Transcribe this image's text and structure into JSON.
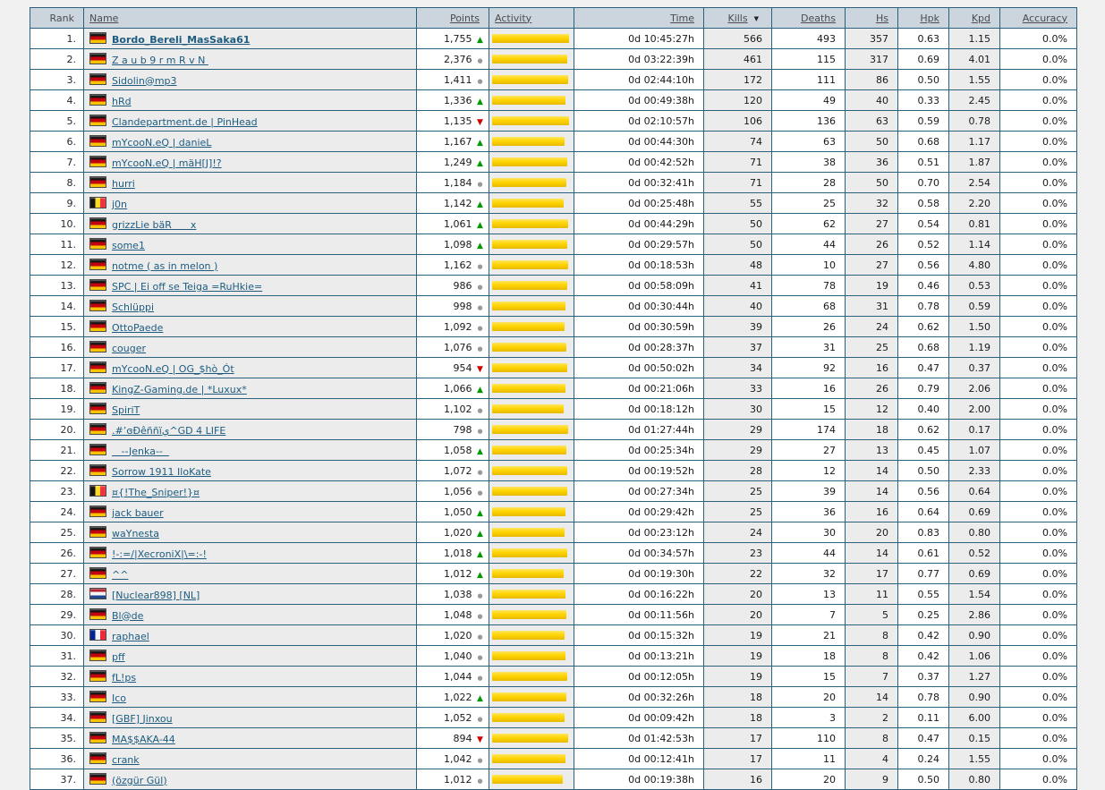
{
  "page": {
    "background": "#f0f0f0"
  },
  "table": {
    "sort": {
      "column": "Kills",
      "direction": "desc",
      "icon": "▼"
    },
    "columns": [
      {
        "key": "rank",
        "label": "Rank",
        "sortable": false
      },
      {
        "key": "name",
        "label": "Name",
        "sortable": true
      },
      {
        "key": "points",
        "label": "Points",
        "sortable": true
      },
      {
        "key": "activity",
        "label": "Activity",
        "sortable": true
      },
      {
        "key": "time",
        "label": "Time",
        "sortable": true
      },
      {
        "key": "kills",
        "label": "Kills",
        "sortable": true
      },
      {
        "key": "deaths",
        "label": "Deaths",
        "sortable": true
      },
      {
        "key": "hs",
        "label": "Hs",
        "sortable": true
      },
      {
        "key": "hpk",
        "label": "Hpk",
        "sortable": true
      },
      {
        "key": "kpd",
        "label": "Kpd",
        "sortable": true
      },
      {
        "key": "accuracy",
        "label": "Accuracy",
        "sortable": true
      }
    ],
    "colors": {
      "border": "#2a617f",
      "header_bg": "#ccd5dd",
      "shaded_column_bg": "#ececec",
      "activity_bar": "#ffd500",
      "trend_up": "#009900",
      "trend_down": "#cc0000",
      "trend_steady": "#999999",
      "player_link": "#1d5c80"
    },
    "trend_icons": {
      "up": "▲",
      "down": "▼",
      "steady": "●"
    },
    "rows": [
      {
        "rank": "1.",
        "flag": "de",
        "name": "Bordo_Bereli_MasSaka61",
        "bold": true,
        "points": "1,755",
        "trend": "up",
        "activity": 98,
        "time": "0d 10:45:27h",
        "kills": "566",
        "deaths": "493",
        "hs": "357",
        "hpk": "0.63",
        "kpd": "1.15",
        "accuracy": "0.0%"
      },
      {
        "rank": "2.",
        "flag": "de",
        "name": "Z a u b 9 r m R v N ",
        "bold": false,
        "points": "2,376",
        "trend": "steady",
        "activity": 95,
        "time": "0d 03:22:39h",
        "kills": "461",
        "deaths": "115",
        "hs": "317",
        "hpk": "0.69",
        "kpd": "4.01",
        "accuracy": "0.0%"
      },
      {
        "rank": "3.",
        "flag": "de",
        "name": "Sidolin@mp3",
        "bold": false,
        "points": "1,411",
        "trend": "steady",
        "activity": 97,
        "time": "0d 02:44:10h",
        "kills": "172",
        "deaths": "111",
        "hs": "86",
        "hpk": "0.50",
        "kpd": "1.55",
        "accuracy": "0.0%"
      },
      {
        "rank": "4.",
        "flag": "de",
        "name": "hRd",
        "bold": false,
        "points": "1,336",
        "trend": "up",
        "activity": 93,
        "time": "0d 00:49:38h",
        "kills": "120",
        "deaths": "49",
        "hs": "40",
        "hpk": "0.33",
        "kpd": "2.45",
        "accuracy": "0.0%"
      },
      {
        "rank": "5.",
        "flag": "de",
        "name": "Clandepartment.de | PinHead",
        "bold": false,
        "points": "1,135",
        "trend": "down",
        "activity": 98,
        "time": "0d 02:10:57h",
        "kills": "106",
        "deaths": "136",
        "hs": "63",
        "hpk": "0.59",
        "kpd": "0.78",
        "accuracy": "0.0%"
      },
      {
        "rank": "6.",
        "flag": "de",
        "name": "mYcooN.eQ | danieL",
        "bold": false,
        "points": "1,167",
        "trend": "up",
        "activity": 92,
        "time": "0d 00:44:30h",
        "kills": "74",
        "deaths": "63",
        "hs": "50",
        "hpk": "0.68",
        "kpd": "1.17",
        "accuracy": "0.0%"
      },
      {
        "rank": "7.",
        "flag": "de",
        "name": "mYcooN.eQ | mäH[J]!?",
        "bold": false,
        "points": "1,249",
        "trend": "up",
        "activity": 95,
        "time": "0d 00:42:52h",
        "kills": "71",
        "deaths": "38",
        "hs": "36",
        "hpk": "0.51",
        "kpd": "1.87",
        "accuracy": "0.0%"
      },
      {
        "rank": "8.",
        "flag": "de",
        "name": "hurri",
        "bold": false,
        "points": "1,184",
        "trend": "steady",
        "activity": 94,
        "time": "0d 00:32:41h",
        "kills": "71",
        "deaths": "28",
        "hs": "50",
        "hpk": "0.70",
        "kpd": "2.54",
        "accuracy": "0.0%"
      },
      {
        "rank": "9.",
        "flag": "be",
        "name": "j0n",
        "bold": false,
        "points": "1,142",
        "trend": "up",
        "activity": 91,
        "time": "0d 00:25:48h",
        "kills": "55",
        "deaths": "25",
        "hs": "32",
        "hpk": "0.58",
        "kpd": "2.20",
        "accuracy": "0.0%"
      },
      {
        "rank": "10.",
        "flag": "de",
        "name": "grizzLie bäR      x",
        "bold": false,
        "points": "1,061",
        "trend": "up",
        "activity": 97,
        "time": "0d 00:44:29h",
        "kills": "50",
        "deaths": "62",
        "hs": "27",
        "hpk": "0.54",
        "kpd": "0.81",
        "accuracy": "0.0%"
      },
      {
        "rank": "11.",
        "flag": "de",
        "name": "some1",
        "bold": false,
        "points": "1,098",
        "trend": "up",
        "activity": 95,
        "time": "0d 00:29:57h",
        "kills": "50",
        "deaths": "44",
        "hs": "26",
        "hpk": "0.52",
        "kpd": "1.14",
        "accuracy": "0.0%"
      },
      {
        "rank": "12.",
        "flag": "de",
        "name": "notme ( as in melon )",
        "bold": false,
        "points": "1,162",
        "trend": "steady",
        "activity": 97,
        "time": "0d 00:18:53h",
        "kills": "48",
        "deaths": "10",
        "hs": "27",
        "hpk": "0.56",
        "kpd": "4.80",
        "accuracy": "0.0%"
      },
      {
        "rank": "13.",
        "flag": "de",
        "name": "SPC | Ei off se Teiga =RuHkie=",
        "bold": false,
        "points": "986",
        "trend": "steady",
        "activity": 95,
        "time": "0d 00:58:09h",
        "kills": "41",
        "deaths": "78",
        "hs": "19",
        "hpk": "0.46",
        "kpd": "0.53",
        "accuracy": "0.0%"
      },
      {
        "rank": "14.",
        "flag": "de",
        "name": "Schlüppi",
        "bold": false,
        "points": "998",
        "trend": "steady",
        "activity": 93,
        "time": "0d 00:30:44h",
        "kills": "40",
        "deaths": "68",
        "hs": "31",
        "hpk": "0.78",
        "kpd": "0.59",
        "accuracy": "0.0%"
      },
      {
        "rank": "15.",
        "flag": "de",
        "name": "OttoPaede",
        "bold": false,
        "points": "1,092",
        "trend": "steady",
        "activity": 92,
        "time": "0d 00:30:59h",
        "kills": "39",
        "deaths": "26",
        "hs": "24",
        "hpk": "0.62",
        "kpd": "1.50",
        "accuracy": "0.0%"
      },
      {
        "rank": "16.",
        "flag": "de",
        "name": "couger",
        "bold": false,
        "points": "1,076",
        "trend": "steady",
        "activity": 94,
        "time": "0d 00:28:37h",
        "kills": "37",
        "deaths": "31",
        "hs": "25",
        "hpk": "0.68",
        "kpd": "1.19",
        "accuracy": "0.0%"
      },
      {
        "rank": "17.",
        "flag": "de",
        "name": "mYcooN.eQ | OG_$hò_Ót",
        "bold": false,
        "points": "954",
        "trend": "down",
        "activity": 96,
        "time": "0d 00:50:02h",
        "kills": "34",
        "deaths": "92",
        "hs": "16",
        "hpk": "0.47",
        "kpd": "0.37",
        "accuracy": "0.0%"
      },
      {
        "rank": "18.",
        "flag": "de",
        "name": "KingZ-Gaming.de | *Luxux*",
        "bold": false,
        "points": "1,066",
        "trend": "up",
        "activity": 93,
        "time": "0d 00:21:06h",
        "kills": "33",
        "deaths": "16",
        "hs": "26",
        "hpk": "0.79",
        "kpd": "2.06",
        "accuracy": "0.0%"
      },
      {
        "rank": "19.",
        "flag": "de",
        "name": "SpiriT",
        "bold": false,
        "points": "1,102",
        "trend": "steady",
        "activity": 91,
        "time": "0d 00:18:12h",
        "kills": "30",
        "deaths": "15",
        "hs": "12",
        "hpk": "0.40",
        "kpd": "2.00",
        "accuracy": "0.0%"
      },
      {
        "rank": "20.",
        "flag": "de",
        "name": ".#ʼɞÐêññïي^GD 4 LIFE",
        "bold": false,
        "points": "798",
        "trend": "steady",
        "activity": 97,
        "time": "0d 01:27:44h",
        "kills": "29",
        "deaths": "174",
        "hs": "18",
        "hpk": "0.62",
        "kpd": "0.17",
        "accuracy": "0.0%"
      },
      {
        "rank": "21.",
        "flag": "de",
        "name": "   --Jenka--  ",
        "bold": false,
        "points": "1,058",
        "trend": "up",
        "activity": 94,
        "time": "0d 00:25:34h",
        "kills": "29",
        "deaths": "27",
        "hs": "13",
        "hpk": "0.45",
        "kpd": "1.07",
        "accuracy": "0.0%"
      },
      {
        "rank": "22.",
        "flag": "de",
        "name": "Sorrow 1911 IloKate",
        "bold": false,
        "points": "1,072",
        "trend": "steady",
        "activity": 95,
        "time": "0d 00:19:52h",
        "kills": "28",
        "deaths": "12",
        "hs": "14",
        "hpk": "0.50",
        "kpd": "2.33",
        "accuracy": "0.0%"
      },
      {
        "rank": "23.",
        "flag": "be",
        "name": "¤{!The_Sniper!}¤",
        "bold": false,
        "points": "1,056",
        "trend": "steady",
        "activity": 96,
        "time": "0d 00:27:34h",
        "kills": "25",
        "deaths": "39",
        "hs": "14",
        "hpk": "0.56",
        "kpd": "0.64",
        "accuracy": "0.0%"
      },
      {
        "rank": "24.",
        "flag": "de",
        "name": "jack bauer",
        "bold": false,
        "points": "1,050",
        "trend": "up",
        "activity": 93,
        "time": "0d 00:29:42h",
        "kills": "25",
        "deaths": "36",
        "hs": "16",
        "hpk": "0.64",
        "kpd": "0.69",
        "accuracy": "0.0%"
      },
      {
        "rank": "25.",
        "flag": "de",
        "name": "waYnesta",
        "bold": false,
        "points": "1,020",
        "trend": "up",
        "activity": 92,
        "time": "0d 00:23:12h",
        "kills": "24",
        "deaths": "30",
        "hs": "20",
        "hpk": "0.83",
        "kpd": "0.80",
        "accuracy": "0.0%"
      },
      {
        "rank": "26.",
        "flag": "de",
        "name": "!-:=/|XecroniX|\\=:-!",
        "bold": false,
        "points": "1,018",
        "trend": "up",
        "activity": 95,
        "time": "0d 00:34:57h",
        "kills": "23",
        "deaths": "44",
        "hs": "14",
        "hpk": "0.61",
        "kpd": "0.52",
        "accuracy": "0.0%"
      },
      {
        "rank": "27.",
        "flag": "de",
        "name": "^^",
        "bold": false,
        "points": "1,012",
        "trend": "up",
        "activity": 91,
        "time": "0d 00:19:30h",
        "kills": "22",
        "deaths": "32",
        "hs": "17",
        "hpk": "0.77",
        "kpd": "0.69",
        "accuracy": "0.0%"
      },
      {
        "rank": "28.",
        "flag": "nl",
        "name": "[Nuclear898] [NL]",
        "bold": false,
        "points": "1,038",
        "trend": "steady",
        "activity": 93,
        "time": "0d 00:16:22h",
        "kills": "20",
        "deaths": "13",
        "hs": "11",
        "hpk": "0.55",
        "kpd": "1.54",
        "accuracy": "0.0%"
      },
      {
        "rank": "29.",
        "flag": "de",
        "name": "Bl@de",
        "bold": false,
        "points": "1,048",
        "trend": "steady",
        "activity": 94,
        "time": "0d 00:11:56h",
        "kills": "20",
        "deaths": "7",
        "hs": "5",
        "hpk": "0.25",
        "kpd": "2.86",
        "accuracy": "0.0%"
      },
      {
        "rank": "30.",
        "flag": "fr",
        "name": "raphael",
        "bold": false,
        "points": "1,020",
        "trend": "steady",
        "activity": 92,
        "time": "0d 00:15:32h",
        "kills": "19",
        "deaths": "21",
        "hs": "8",
        "hpk": "0.42",
        "kpd": "0.90",
        "accuracy": "0.0%"
      },
      {
        "rank": "31.",
        "flag": "de",
        "name": "pff",
        "bold": false,
        "points": "1,040",
        "trend": "steady",
        "activity": 93,
        "time": "0d 00:13:21h",
        "kills": "19",
        "deaths": "18",
        "hs": "8",
        "hpk": "0.42",
        "kpd": "1.06",
        "accuracy": "0.0%"
      },
      {
        "rank": "32.",
        "flag": "de",
        "name": "fL!ps",
        "bold": false,
        "points": "1,044",
        "trend": "steady",
        "activity": 95,
        "time": "0d 00:12:05h",
        "kills": "19",
        "deaths": "15",
        "hs": "7",
        "hpk": "0.37",
        "kpd": "1.27",
        "accuracy": "0.0%"
      },
      {
        "rank": "33.",
        "flag": "de",
        "name": "Ico",
        "bold": false,
        "points": "1,022",
        "trend": "up",
        "activity": 94,
        "time": "0d 00:32:26h",
        "kills": "18",
        "deaths": "20",
        "hs": "14",
        "hpk": "0.78",
        "kpd": "0.90",
        "accuracy": "0.0%"
      },
      {
        "rank": "34.",
        "flag": "de",
        "name": "[GBF] Jinxou",
        "bold": false,
        "points": "1,052",
        "trend": "steady",
        "activity": 92,
        "time": "0d 00:09:42h",
        "kills": "18",
        "deaths": "3",
        "hs": "2",
        "hpk": "0.11",
        "kpd": "6.00",
        "accuracy": "0.0%"
      },
      {
        "rank": "35.",
        "flag": "de",
        "name": "MA$$AKA-44",
        "bold": false,
        "points": "894",
        "trend": "down",
        "activity": 97,
        "time": "0d 01:42:53h",
        "kills": "17",
        "deaths": "110",
        "hs": "8",
        "hpk": "0.47",
        "kpd": "0.15",
        "accuracy": "0.0%"
      },
      {
        "rank": "36.",
        "flag": "de",
        "name": "crank",
        "bold": false,
        "points": "1,042",
        "trend": "steady",
        "activity": 93,
        "time": "0d 00:12:41h",
        "kills": "17",
        "deaths": "11",
        "hs": "4",
        "hpk": "0.24",
        "kpd": "1.55",
        "accuracy": "0.0%"
      },
      {
        "rank": "37.",
        "flag": "de",
        "name": "(özgür Gül)",
        "bold": false,
        "points": "1,012",
        "trend": "steady",
        "activity": 90,
        "time": "0d 00:19:38h",
        "kills": "16",
        "deaths": "20",
        "hs": "9",
        "hpk": "0.50",
        "kpd": "0.80",
        "accuracy": "0.0%"
      }
    ]
  }
}
